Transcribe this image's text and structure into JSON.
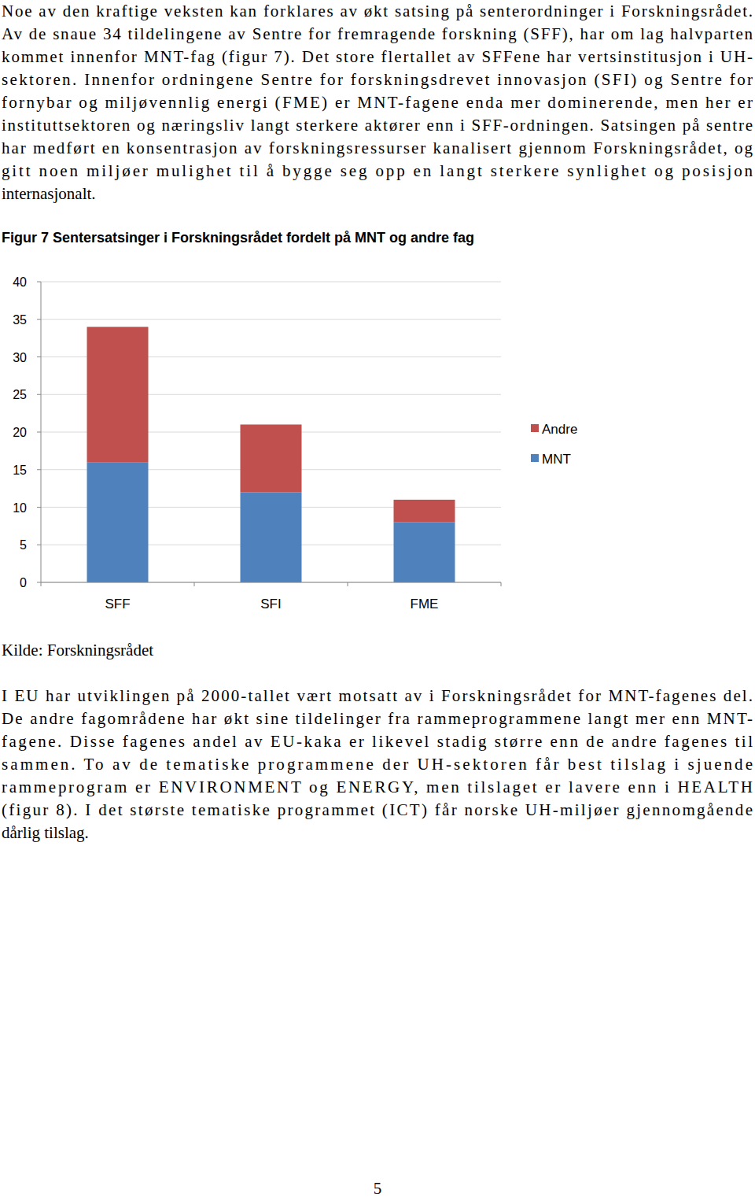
{
  "paragraph_1": [
    "Noe av den kraftige veksten kan forklares av økt satsing på senterordninger i Forskningsrådet.",
    "Av de snaue 34 tildelingene av Sentre for fremragende forskning (SFF), har om lag halvparten",
    "kommet innenfor MNT-fag (figur 7). Det store flertallet av SFFene har vertsinstitusjon i UH-",
    "sektoren. Innenfor ordningene Sentre for forskningsdrevet innovasjon (SFI) og Sentre for",
    "fornybar og miljøvennlig energi (FME) er MNT-fagene enda mer dominerende, men her er",
    "instituttsektoren og næringsliv langt sterkere aktører enn i SFF-ordningen. Satsingen på sentre",
    "har medført en konsentrasjon av forskningsressurser kanalisert gjennom Forskningsrådet, og",
    "gitt noen miljøer mulighet til å bygge seg opp en langt sterkere synlighet og posisjon",
    "internasjonalt."
  ],
  "chart_data": {
    "type": "bar",
    "title": "Figur 7 Sentersatsinger i Forskningsrådet fordelt på MNT og andre fag",
    "stacked": true,
    "categories": [
      "SFF",
      "SFI",
      "FME"
    ],
    "series": [
      {
        "name": "MNT",
        "color": "#4f81bd",
        "values": [
          16,
          12,
          8
        ]
      },
      {
        "name": "Andre",
        "color": "#c0504d",
        "values": [
          18,
          9,
          3
        ]
      }
    ],
    "ylim": [
      0,
      40
    ],
    "yticks": [
      0,
      5,
      10,
      15,
      20,
      25,
      30,
      35,
      40
    ],
    "grid": true,
    "legend": "right"
  },
  "source": "Kilde: Forskningsrådet",
  "paragraph_2": [
    "I EU har utviklingen på 2000-tallet vært motsatt av i Forskningsrådet for MNT-fagenes del.",
    "De andre fagområdene har økt sine tildelinger fra rammeprogrammene langt mer enn MNT-",
    "fagene. Disse fagenes andel av EU-kaka er likevel stadig større enn de andre fagenes til",
    "sammen. To av de tematiske programmene der UH-sektoren får best tilslag i sjuende",
    "rammeprogram er ENVIRONMENT og ENERGY, men tilslaget er lavere enn i HEALTH",
    "(figur 8). I det største tematiske programmet (ICT) får norske UH-miljøer gjennomgående",
    "dårlig tilslag."
  ],
  "page_number": "5"
}
